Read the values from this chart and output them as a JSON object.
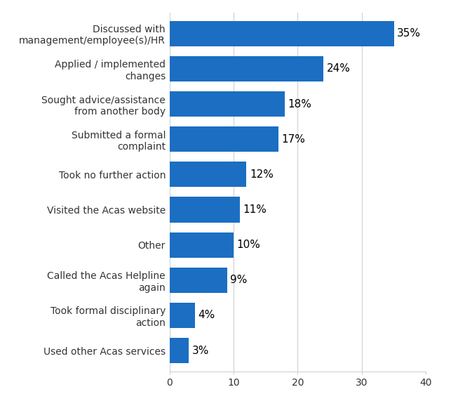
{
  "categories": [
    "Used other Acas services",
    "Took formal disciplinary\naction",
    "Called the Acas Helpline\nagain",
    "Other",
    "Visited the Acas website",
    "Took no further action",
    "Submitted a formal\ncomplaint",
    "Sought advice/assistance\nfrom another body",
    "Applied / implemented\nchanges",
    "Discussed with\nmanagement/employee(s)/HR"
  ],
  "values": [
    3,
    4,
    9,
    10,
    11,
    12,
    17,
    18,
    24,
    35
  ],
  "bar_color": "#1B6EC2",
  "label_color": "#000000",
  "background_color": "#ffffff",
  "grid_color": "#d0d0d0",
  "xlim": [
    0,
    40
  ],
  "xticks": [
    0,
    10,
    20,
    30,
    40
  ],
  "bar_height": 0.72,
  "label_fontsize": 10,
  "tick_fontsize": 10,
  "value_fontsize": 11
}
